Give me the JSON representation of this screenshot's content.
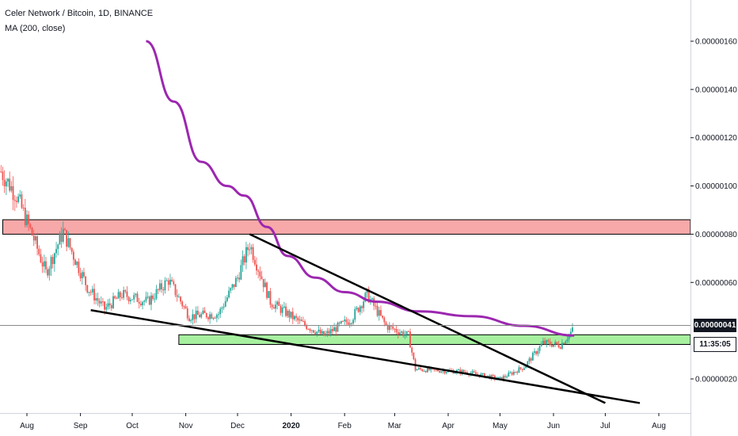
{
  "legend": {
    "title": "Celer Network / Bitcoin, 1D, BINANCE",
    "indicator": "MA (200, close)"
  },
  "price_axis": {
    "ticks": [
      "0.00000160",
      "0.00000140",
      "0.00000120",
      "0.00000100",
      "0.00000080",
      "0.00000060",
      "0.00000020"
    ],
    "last_price": "0.00000041",
    "countdown": "11:35:05"
  },
  "time_axis": {
    "ticks": [
      {
        "label": "Aug",
        "bold": false
      },
      {
        "label": "Sep",
        "bold": false
      },
      {
        "label": "Oct",
        "bold": false
      },
      {
        "label": "Nov",
        "bold": false
      },
      {
        "label": "Dec",
        "bold": false
      },
      {
        "label": "2020",
        "bold": true
      },
      {
        "label": "Feb",
        "bold": false
      },
      {
        "label": "Mar",
        "bold": false
      },
      {
        "label": "Apr",
        "bold": false
      },
      {
        "label": "May",
        "bold": false
      },
      {
        "label": "Jun",
        "bold": false
      },
      {
        "label": "Jul",
        "bold": false
      },
      {
        "label": "Aug",
        "bold": false
      }
    ]
  },
  "colors": {
    "up": "#26a69a",
    "down": "#ef5350",
    "ma": "#9c27b0",
    "resistance_zone": "#f7a8a8",
    "support_zone": "#a6f0a0",
    "trendline": "#000000"
  },
  "chart_data": {
    "type": "candlestick",
    "symbol": "Celer Network / Bitcoin",
    "interval": "1D",
    "exchange": "BINANCE",
    "y_unit": "BTC",
    "ylim": [
      1e-07,
      1.75e-06
    ],
    "series": [
      {
        "indicator": "MA (200, close)",
        "points": [
          {
            "date": "2019-10-09",
            "value": 1.6e-06
          },
          {
            "date": "2019-10-25",
            "value": 1.35e-06
          },
          {
            "date": "2019-11-10",
            "value": 1.1e-06
          },
          {
            "date": "2019-11-25",
            "value": 1e-06
          },
          {
            "date": "2019-12-05",
            "value": 9.6e-07
          },
          {
            "date": "2019-12-18",
            "value": 8.3e-07
          },
          {
            "date": "2019-12-30",
            "value": 7.1e-07
          },
          {
            "date": "2020-01-15",
            "value": 6.2e-07
          },
          {
            "date": "2020-02-01",
            "value": 5.6e-07
          },
          {
            "date": "2020-02-20",
            "value": 5.2e-07
          },
          {
            "date": "2020-03-15",
            "value": 4.8e-07
          },
          {
            "date": "2020-04-15",
            "value": 4.6e-07
          },
          {
            "date": "2020-05-15",
            "value": 4.2e-07
          },
          {
            "date": "2020-06-13",
            "value": 3.8e-07
          }
        ]
      }
    ],
    "price_path": [
      {
        "date": "2019-07-17",
        "value": 1.06e-06
      },
      {
        "date": "2019-07-26",
        "value": 9.6e-07
      },
      {
        "date": "2019-08-05",
        "value": 7.8e-07
      },
      {
        "date": "2019-08-12",
        "value": 6.4e-07
      },
      {
        "date": "2019-08-22",
        "value": 8.1e-07
      },
      {
        "date": "2019-09-05",
        "value": 5.8e-07
      },
      {
        "date": "2019-09-15",
        "value": 4.9e-07
      },
      {
        "date": "2019-09-25",
        "value": 5.5e-07
      },
      {
        "date": "2019-10-10",
        "value": 5.2e-07
      },
      {
        "date": "2019-10-22",
        "value": 6.1e-07
      },
      {
        "date": "2019-11-03",
        "value": 4.6e-07
      },
      {
        "date": "2019-11-20",
        "value": 4.7e-07
      },
      {
        "date": "2019-12-01",
        "value": 6.2e-07
      },
      {
        "date": "2019-12-08",
        "value": 7.6e-07
      },
      {
        "date": "2019-12-20",
        "value": 5.2e-07
      },
      {
        "date": "2020-01-05",
        "value": 4.4e-07
      },
      {
        "date": "2020-01-20",
        "value": 3.8e-07
      },
      {
        "date": "2020-02-05",
        "value": 4.5e-07
      },
      {
        "date": "2020-02-14",
        "value": 5.5e-07
      },
      {
        "date": "2020-02-25",
        "value": 4.2e-07
      },
      {
        "date": "2020-03-09",
        "value": 3.8e-07
      },
      {
        "date": "2020-03-13",
        "value": 2.4e-07
      },
      {
        "date": "2020-04-10",
        "value": 2.3e-07
      },
      {
        "date": "2020-05-01",
        "value": 2e-07
      },
      {
        "date": "2020-05-15",
        "value": 2.5e-07
      },
      {
        "date": "2020-05-26",
        "value": 3.5e-07
      },
      {
        "date": "2020-06-05",
        "value": 3.4e-07
      },
      {
        "date": "2020-06-13",
        "value": 4.1e-07
      }
    ],
    "zones": [
      {
        "name": "resistance",
        "from_date": "2019-07-18",
        "to_date": "2020-08-31",
        "y_low": 8e-07,
        "y_high": 8.6e-07
      },
      {
        "name": "support",
        "from_date": "2019-10-28",
        "to_date": "2020-08-31",
        "y_low": 3.43e-07,
        "y_high": 3.83e-07
      }
    ],
    "trendlines": [
      {
        "from": {
          "date": "2019-09-07",
          "value": 4.85e-07
        },
        "to": {
          "date": "2020-07-21",
          "value": 1e-07
        }
      },
      {
        "from": {
          "date": "2019-12-08",
          "value": 8e-07
        },
        "to": {
          "date": "2020-07-01",
          "value": 1e-07
        }
      }
    ],
    "grid": false
  }
}
